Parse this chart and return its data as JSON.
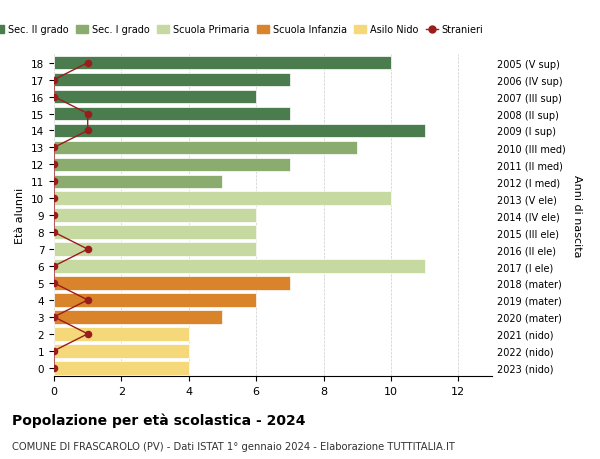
{
  "ages": [
    18,
    17,
    16,
    15,
    14,
    13,
    12,
    11,
    10,
    9,
    8,
    7,
    6,
    5,
    4,
    3,
    2,
    1,
    0
  ],
  "right_labels": [
    "2005 (V sup)",
    "2006 (IV sup)",
    "2007 (III sup)",
    "2008 (II sup)",
    "2009 (I sup)",
    "2010 (III med)",
    "2011 (II med)",
    "2012 (I med)",
    "2013 (V ele)",
    "2014 (IV ele)",
    "2015 (III ele)",
    "2016 (II ele)",
    "2017 (I ele)",
    "2018 (mater)",
    "2019 (mater)",
    "2020 (mater)",
    "2021 (nido)",
    "2022 (nido)",
    "2023 (nido)"
  ],
  "bar_values": [
    10,
    7,
    6,
    7,
    11,
    9,
    7,
    5,
    10,
    6,
    6,
    6,
    11,
    7,
    6,
    5,
    4,
    4,
    4
  ],
  "bar_colors": [
    "#4a7c4e",
    "#4a7c4e",
    "#4a7c4e",
    "#4a7c4e",
    "#4a7c4e",
    "#8aac6e",
    "#8aac6e",
    "#8aac6e",
    "#c5d9a0",
    "#c5d9a0",
    "#c5d9a0",
    "#c5d9a0",
    "#c5d9a0",
    "#d9832a",
    "#d9832a",
    "#d9832a",
    "#f5d87a",
    "#f5d87a",
    "#f5d87a"
  ],
  "stranieri_values": [
    1,
    0,
    0,
    1,
    1,
    0,
    0,
    0,
    0,
    0,
    0,
    1,
    0,
    0,
    1,
    0,
    1,
    0,
    0
  ],
  "title": "Popolazione per età scolastica - 2024",
  "subtitle": "COMUNE DI FRASCAROLO (PV) - Dati ISTAT 1° gennaio 2024 - Elaborazione TUTTITALIA.IT",
  "ylabel": "Età alunni",
  "right_ylabel": "Anni di nascita",
  "legend_labels": [
    "Sec. II grado",
    "Sec. I grado",
    "Scuola Primaria",
    "Scuola Infanzia",
    "Asilo Nido",
    "Stranieri"
  ],
  "legend_colors": [
    "#4a7c4e",
    "#8aac6e",
    "#c5d9a0",
    "#d9832a",
    "#f5d87a",
    "#9b1c1c"
  ],
  "stranieri_color": "#9b1c1c",
  "grid_color": "#cccccc",
  "bg_color": "#ffffff"
}
